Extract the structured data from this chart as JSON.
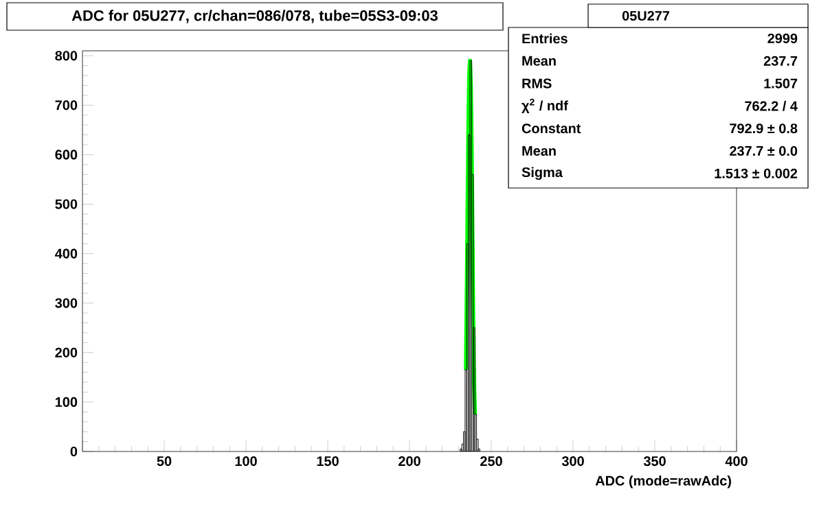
{
  "chart_data": {
    "type": "histogram",
    "title": "ADC for 05U277,  cr/chan=086/078,  tube=05S3-09:03",
    "xlabel": "ADC (mode=rawAdc)",
    "bins": [
      231,
      232,
      233,
      234,
      235,
      236,
      237,
      238,
      239,
      240,
      241,
      242,
      243
    ],
    "values": [
      5,
      15,
      40,
      165,
      420,
      640,
      790,
      560,
      250,
      75,
      25,
      5
    ],
    "color": "#000000",
    "series": [
      {
        "type": "line",
        "color": "#00ff00",
        "x": [
          234.5,
          235,
          235.5,
          236,
          236.5,
          237,
          237.5,
          238,
          238.5,
          239,
          239.5,
          240
        ],
        "values": [
          165,
          300,
          480,
          650,
          760,
          790,
          740,
          620,
          430,
          260,
          140,
          75
        ]
      }
    ],
    "xlim": [
      0,
      400
    ],
    "ylim": [
      0,
      810
    ],
    "xticks": [
      {
        "value": 0,
        "label": null
      },
      50,
      100,
      150,
      200,
      250,
      300,
      350,
      400
    ],
    "yticks": [
      0,
      100,
      200,
      300,
      400,
      500,
      600,
      700,
      800
    ],
    "grid": false,
    "annotations": [
      "05U277",
      "Entries",
      "2999",
      "Mean",
      "237.7",
      "RMS",
      "1.507",
      "χ$^{2}$ / ndf",
      "762.2 / 4",
      "Constant",
      "792.9 ± 0.8",
      "Mean",
      "237.7 ± 0.0",
      "Sigma",
      "1.513 ± 0.002"
    ]
  }
}
